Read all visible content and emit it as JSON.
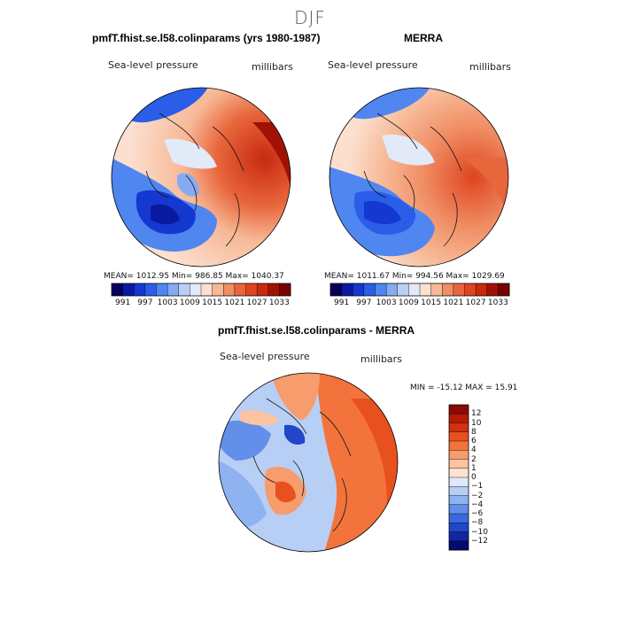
{
  "figure_title": "DJF",
  "panels": [
    {
      "title": "pmfT.fhist.se.l58.colinparams (yrs 1980-1987)",
      "variable": "Sea-level pressure",
      "units": "millibars",
      "stats": "MEAN= 1012.95   Min= 986.85   Max= 1040.37"
    },
    {
      "title": "MERRA",
      "variable": "Sea-level pressure",
      "units": "millibars",
      "stats": "MEAN= 1011.67   Min= 994.56   Max= 1029.69"
    },
    {
      "title": "pmfT.fhist.se.l58.colinparams - MERRA",
      "variable": "Sea-level pressure",
      "units": "millibars",
      "stats": "MIN = -15.12  MAX =  15.91"
    }
  ],
  "abs_colorbar": {
    "tick_labels": [
      "991",
      "997",
      "1003",
      "1009",
      "1015",
      "1021",
      "1027",
      "1033"
    ],
    "colors": [
      "#08005a",
      "#0a1aa0",
      "#1538d0",
      "#2a5ee8",
      "#4f86f0",
      "#86abf2",
      "#b9cff5",
      "#e2e9f7",
      "#fbe0cf",
      "#f7b896",
      "#f08e64",
      "#e8663c",
      "#de4520",
      "#c82a10",
      "#a01206",
      "#780202"
    ]
  },
  "diff_colorbar": {
    "tick_labels": [
      "12",
      "10",
      "8",
      "6",
      "4",
      "2",
      "1",
      "0",
      "−1",
      "−2",
      "−4",
      "−6",
      "−8",
      "−10",
      "−12"
    ],
    "colors": [
      "#8a0a04",
      "#b51a08",
      "#d3300e",
      "#e8501e",
      "#f2743c",
      "#f79c6c",
      "#fbc4a2",
      "#fde3d2",
      "#dfe9f9",
      "#b8cff5",
      "#8fb2f0",
      "#628fea",
      "#3a69df",
      "#2146c8",
      "#1326a2",
      "#060a6e"
    ]
  }
}
